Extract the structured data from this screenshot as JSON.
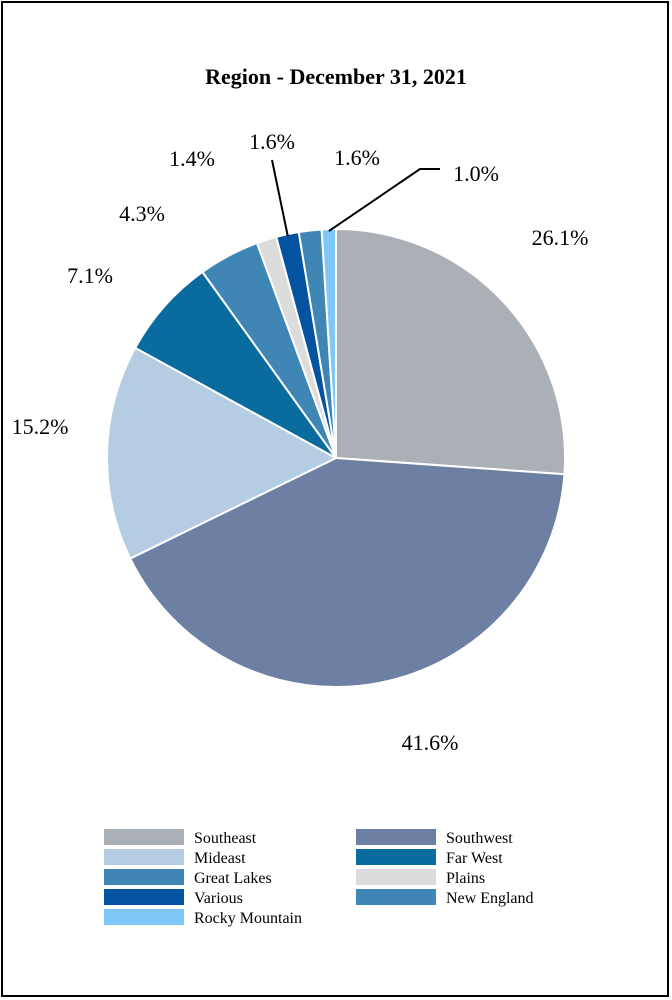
{
  "chart_data": {
    "type": "pie",
    "title": "Region - December 31, 2021",
    "slices": [
      {
        "name": "Southeast",
        "value": 26.1,
        "label": "26.1%",
        "color": "#aab0b5"
      },
      {
        "name": "Southwest",
        "value": 41.6,
        "label": "41.6%",
        "color": "#6d80a3"
      },
      {
        "name": "Mideast",
        "value": 15.2,
        "label": "15.2%",
        "color": "#b5cde2"
      },
      {
        "name": "Far West",
        "value": 7.1,
        "label": "7.1%",
        "color": "#0a6b9e"
      },
      {
        "name": "Great Lakes",
        "value": 4.3,
        "label": "4.3%",
        "color": "#3f86b5"
      },
      {
        "name": "Plains",
        "value": 1.4,
        "label": "1.4%",
        "color": "#dcdcdc"
      },
      {
        "name": "Various",
        "value": 1.6,
        "label": "1.6%",
        "color": "#0353a1"
      },
      {
        "name": "New England",
        "value": 1.6,
        "label": "1.6%",
        "color": "#3f86b5"
      },
      {
        "name": "Rocky Mountain",
        "value": 1.0,
        "label": "1.0%",
        "color": "#7fc7f8"
      }
    ],
    "legend": {
      "placement": "bottom",
      "columns": [
        [
          "Southeast",
          "Mideast",
          "Great Lakes",
          "Various",
          "Rocky Mountain"
        ],
        [
          "Southwest",
          "Far West",
          "Plains",
          "New England"
        ]
      ]
    }
  }
}
